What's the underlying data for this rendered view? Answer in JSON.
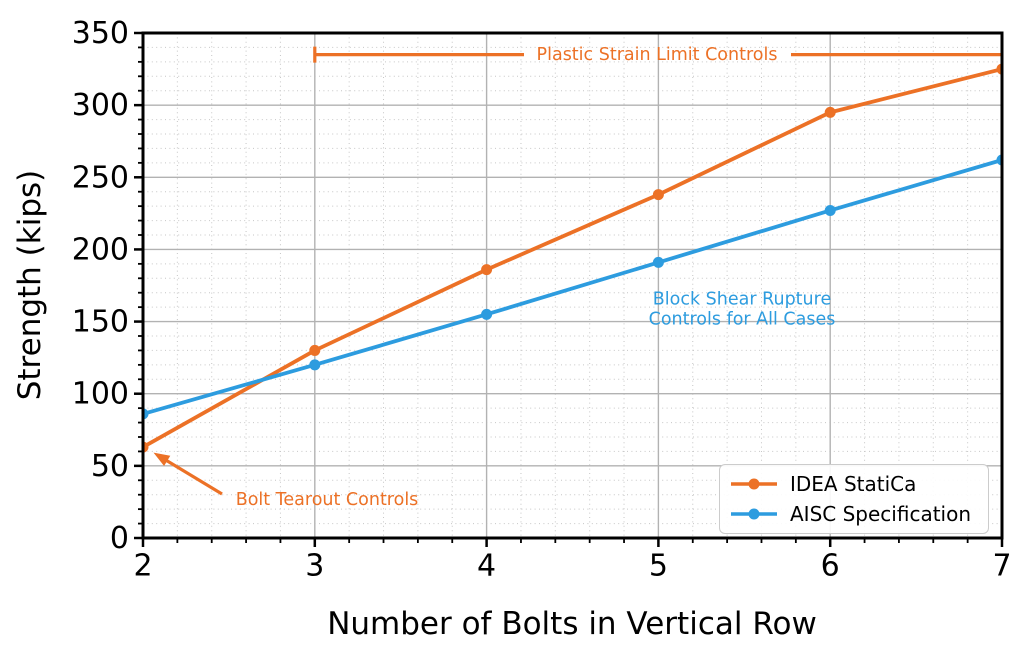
{
  "chart_data": {
    "type": "line",
    "title": "",
    "xlabel": "Number of Bolts in Vertical Row",
    "ylabel": "Strength (kips)",
    "x": [
      2,
      3,
      4,
      5,
      6,
      7
    ],
    "series": [
      {
        "name": "IDEA StatiCa",
        "color": "#EC7126",
        "values": [
          63,
          130,
          186,
          238,
          295,
          325
        ]
      },
      {
        "name": "AISC Specification",
        "color": "#2D9CDF",
        "values": [
          86,
          120,
          155,
          191,
          227,
          262
        ]
      }
    ],
    "xlim": [
      2,
      7
    ],
    "ylim": [
      0,
      350
    ],
    "xticks": [
      2,
      3,
      4,
      5,
      6,
      7
    ],
    "yticks": [
      0,
      50,
      100,
      150,
      200,
      250,
      300,
      350
    ],
    "x_minor_step": 0.2,
    "y_minor_step": 10,
    "grid": {
      "major_color": "#b2b2b2",
      "minor_color": "#c6c6c6",
      "minor_style": "dotted",
      "major_on": true,
      "minor_on": true
    },
    "axis_color": "#000000",
    "legend_position": "lower right",
    "annotations": [
      {
        "text": "Plastic Strain Limit Controls",
        "color": "#EC7126",
        "type": "horizontal-line-label",
        "y": 335,
        "x_start": 3,
        "x_end": 7
      },
      {
        "text": "Bolt Tearout Controls",
        "color": "#EC7126",
        "type": "arrow-label",
        "target_x": 2,
        "target_y": 63
      },
      {
        "text_lines": [
          "Block Shear Rupture",
          "Controls for All Cases"
        ],
        "color": "#2D9CDF",
        "type": "text-label",
        "x": 5.5,
        "y": 160
      }
    ]
  }
}
